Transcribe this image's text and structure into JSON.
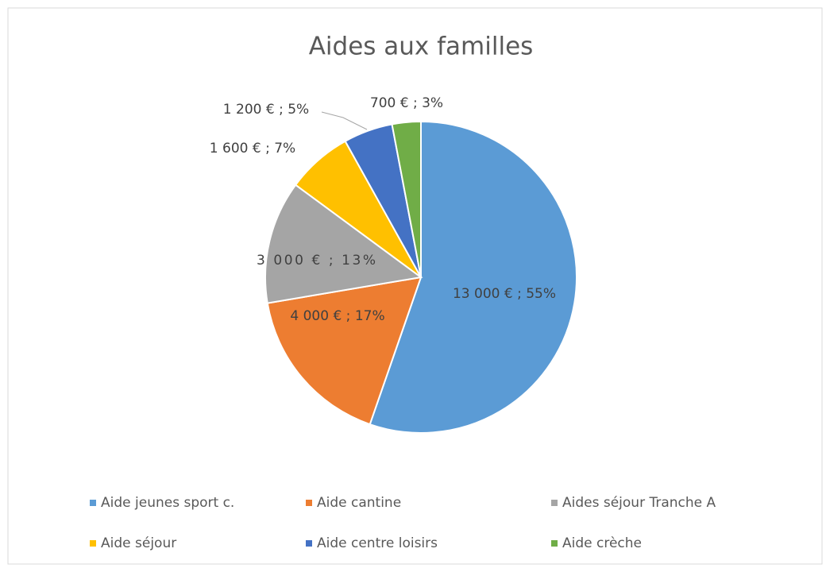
{
  "chart_data": {
    "type": "pie",
    "title": "Aides aux familles",
    "categories": [
      "Aide jeunes sport c.",
      "Aide cantine",
      "Aides séjour Tranche A",
      "Aide séjour",
      "Aide centre loisirs",
      "Aide crèche"
    ],
    "values": [
      13000,
      4000,
      3000,
      1600,
      1200,
      700
    ],
    "value_labels": [
      "13 000 € ; 55%",
      "4 000 € ; 17%",
      "3 000 € ; 13%",
      "1 600 € ; 7%",
      "1 200 € ; 5%",
      "700 € ; 3%"
    ],
    "colors": [
      "#5b9bd5",
      "#ed7d31",
      "#a5a5a5",
      "#ffc000",
      "#4472c4",
      "#70ad47"
    ],
    "legend": "bottom"
  }
}
